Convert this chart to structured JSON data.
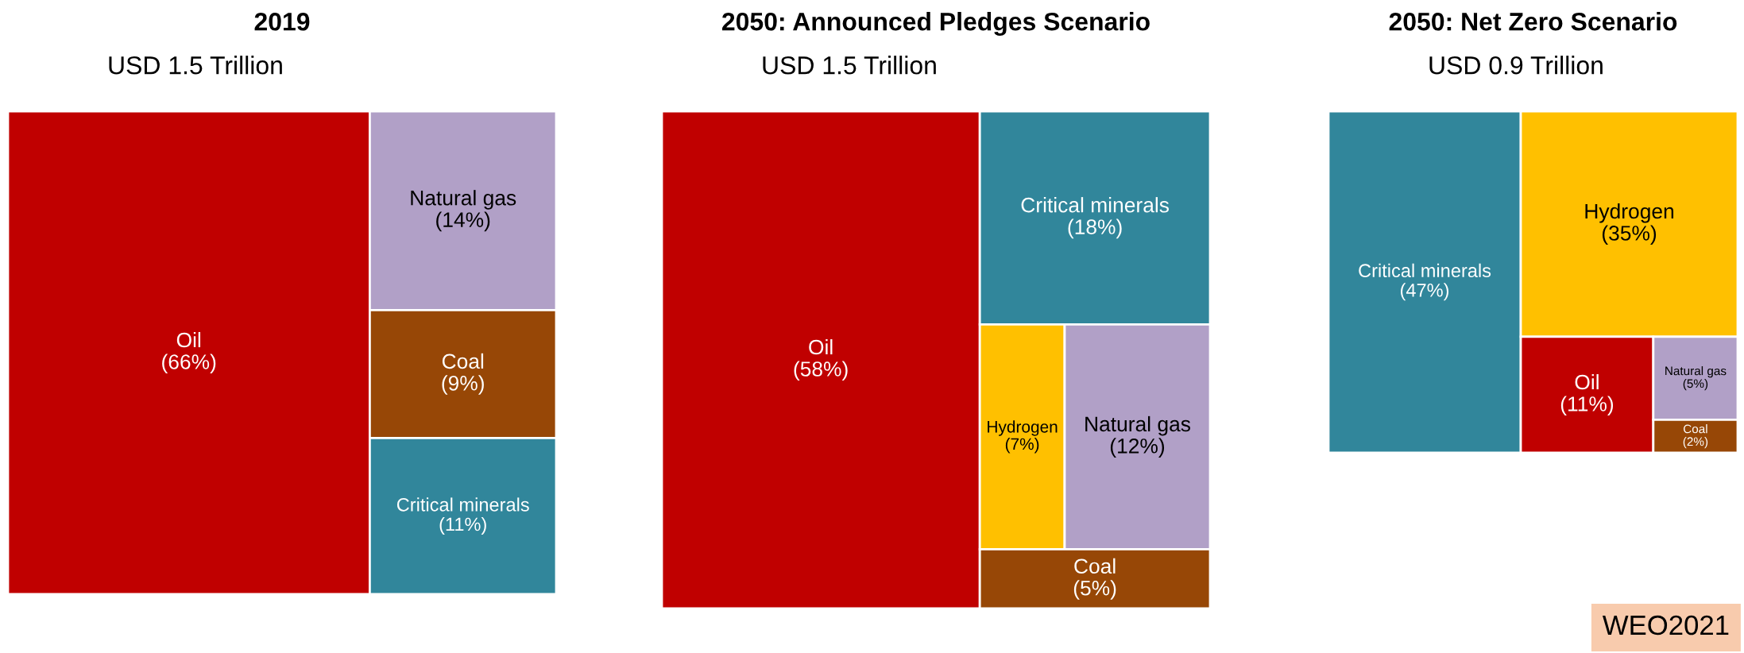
{
  "chart_data": [
    {
      "type": "other",
      "title": "2019",
      "subtitle": "USD 1.5 Trillion",
      "categories": [
        "Oil",
        "Natural gas",
        "Coal",
        "Critical minerals"
      ],
      "values": [
        66,
        14,
        9,
        11
      ],
      "value_labels": [
        "(66%)",
        "(14%)",
        "(9%)",
        "(11%)"
      ],
      "colors": [
        "#c00000",
        "#b1a0c7",
        "#974706",
        "#31869b"
      ]
    },
    {
      "type": "other",
      "title": "2050: Announced Pledges Scenario",
      "subtitle": "USD 1.5 Trillion",
      "categories": [
        "Oil",
        "Critical minerals",
        "Hydrogen",
        "Natural gas",
        "Coal"
      ],
      "values": [
        58,
        18,
        7,
        12,
        5
      ],
      "value_labels": [
        "(58%)",
        "(18%)",
        "(7%)",
        "(12%)",
        "(5%)"
      ],
      "colors": [
        "#c00000",
        "#31869b",
        "#ffc000",
        "#b1a0c7",
        "#974706"
      ]
    },
    {
      "type": "other",
      "title": "2050: Net Zero Scenario",
      "subtitle": "USD 0.9 Trillion",
      "categories": [
        "Critical minerals",
        "Hydrogen",
        "Oil",
        "Natural gas",
        "Coal"
      ],
      "values": [
        47,
        35,
        11,
        5,
        2
      ],
      "value_labels": [
        "(47%)",
        "(35%)",
        "(11%)",
        "(5%)",
        "(2%)"
      ],
      "colors": [
        "#31869b",
        "#ffc000",
        "#c00000",
        "#b1a0c7",
        "#974706"
      ],
      "annotations": [
        "WEO2021"
      ]
    }
  ]
}
